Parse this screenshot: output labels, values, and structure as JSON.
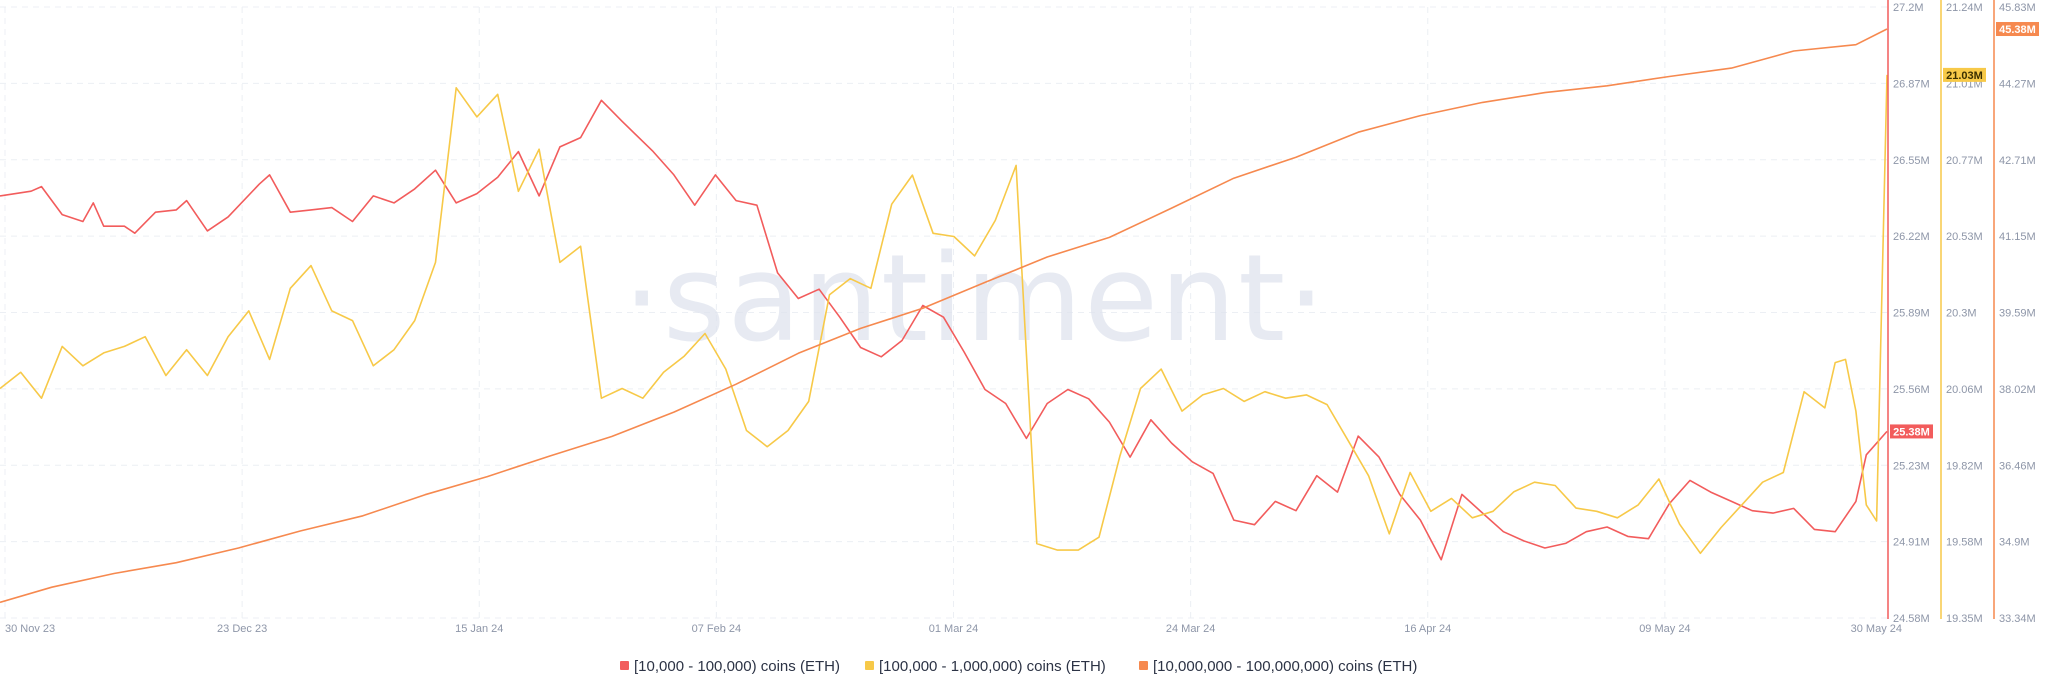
{
  "colors": {
    "series1": "#f25c5c",
    "series2": "#f7c948",
    "series3": "#f6894f",
    "grid": "#eceff4",
    "axis_text": "#8e96a8",
    "watermark": "#dfe4ee"
  },
  "watermark_text": "·santiment·",
  "chart_data": {
    "type": "line",
    "title": "",
    "x_tick_labels": [
      "30 Nov 23",
      "23 Dec 23",
      "15 Jan 24",
      "07 Feb 24",
      "01 Mar 24",
      "24 Mar 24",
      "16 Apr 24",
      "09 May 24",
      "30 May 24"
    ],
    "x_range": [
      "2023-11-30",
      "2024-05-30"
    ],
    "grid": true,
    "legend_position": "bottom-center",
    "y_axes": [
      {
        "id": "y1",
        "series": "[10,000 - 100,000) coins (ETH)",
        "range": [
          24.58,
          27.2
        ],
        "unit": "M",
        "tick_labels": [
          "27.2M",
          "26.87M",
          "26.55M",
          "26.22M",
          "25.89M",
          "25.56M",
          "25.23M",
          "24.91M",
          "24.58M"
        ],
        "current_label": "25.38M"
      },
      {
        "id": "y2",
        "series": "[100,000 - 1,000,000) coins (ETH)",
        "range": [
          19.35,
          21.24
        ],
        "unit": "M",
        "tick_labels": [
          "21.24M",
          "21.01M",
          "20.77M",
          "20.53M",
          "20.3M",
          "20.06M",
          "19.82M",
          "19.58M",
          "19.35M"
        ],
        "current_label": "21.03M"
      },
      {
        "id": "y3",
        "series": "[10,000,000 - 100,000,000) coins (ETH)",
        "range": [
          33.34,
          45.83
        ],
        "unit": "M",
        "tick_labels": [
          "45.83M",
          "44.27M",
          "42.71M",
          "41.15M",
          "39.59M",
          "38.02M",
          "36.46M",
          "34.9M",
          "33.34M"
        ],
        "current_label": "45.38M"
      }
    ],
    "series": [
      {
        "name": "[10,000 - 100,000) coins (ETH)",
        "axis": "y1",
        "color": "#f25c5c",
        "points": [
          [
            "2023-11-30",
            26.39
          ],
          [
            "2023-12-03",
            26.41
          ],
          [
            "2023-12-04",
            26.43
          ],
          [
            "2023-12-06",
            26.31
          ],
          [
            "2023-12-08",
            26.28
          ],
          [
            "2023-12-09",
            26.36
          ],
          [
            "2023-12-10",
            26.26
          ],
          [
            "2023-12-12",
            26.26
          ],
          [
            "2023-12-13",
            26.23
          ],
          [
            "2023-12-15",
            26.32
          ],
          [
            "2023-12-17",
            26.33
          ],
          [
            "2023-12-18",
            26.37
          ],
          [
            "2023-12-20",
            26.24
          ],
          [
            "2023-12-22",
            26.3
          ],
          [
            "2023-12-25",
            26.44
          ],
          [
            "2023-12-26",
            26.48
          ],
          [
            "2023-12-28",
            26.32
          ],
          [
            "2023-12-30",
            26.33
          ],
          [
            "2024-01-01",
            26.34
          ],
          [
            "2024-01-03",
            26.28
          ],
          [
            "2024-01-05",
            26.39
          ],
          [
            "2024-01-07",
            26.36
          ],
          [
            "2024-01-09",
            26.42
          ],
          [
            "2024-01-11",
            26.5
          ],
          [
            "2024-01-13",
            26.36
          ],
          [
            "2024-01-15",
            26.4
          ],
          [
            "2024-01-17",
            26.47
          ],
          [
            "2024-01-19",
            26.58
          ],
          [
            "2024-01-21",
            26.39
          ],
          [
            "2024-01-23",
            26.6
          ],
          [
            "2024-01-25",
            26.64
          ],
          [
            "2024-01-27",
            26.8
          ],
          [
            "2024-01-29",
            26.71
          ],
          [
            "2024-02-01",
            26.58
          ],
          [
            "2024-02-03",
            26.48
          ],
          [
            "2024-02-05",
            26.35
          ],
          [
            "2024-02-07",
            26.48
          ],
          [
            "2024-02-09",
            26.37
          ],
          [
            "2024-02-11",
            26.35
          ],
          [
            "2024-02-13",
            26.06
          ],
          [
            "2024-02-15",
            25.95
          ],
          [
            "2024-02-17",
            25.99
          ],
          [
            "2024-02-19",
            25.87
          ],
          [
            "2024-02-21",
            25.74
          ],
          [
            "2024-02-23",
            25.7
          ],
          [
            "2024-02-25",
            25.77
          ],
          [
            "2024-02-27",
            25.92
          ],
          [
            "2024-02-29",
            25.87
          ],
          [
            "2024-03-02",
            25.72
          ],
          [
            "2024-03-04",
            25.56
          ],
          [
            "2024-03-06",
            25.5
          ],
          [
            "2024-03-08",
            25.35
          ],
          [
            "2024-03-10",
            25.5
          ],
          [
            "2024-03-12",
            25.56
          ],
          [
            "2024-03-14",
            25.52
          ],
          [
            "2024-03-16",
            25.42
          ],
          [
            "2024-03-18",
            25.27
          ],
          [
            "2024-03-20",
            25.43
          ],
          [
            "2024-03-22",
            25.33
          ],
          [
            "2024-03-24",
            25.25
          ],
          [
            "2024-03-26",
            25.2
          ],
          [
            "2024-03-28",
            25.0
          ],
          [
            "2024-03-30",
            24.98
          ],
          [
            "2024-04-01",
            25.08
          ],
          [
            "2024-04-03",
            25.04
          ],
          [
            "2024-04-05",
            25.19
          ],
          [
            "2024-04-07",
            25.12
          ],
          [
            "2024-04-09",
            25.36
          ],
          [
            "2024-04-11",
            25.27
          ],
          [
            "2024-04-13",
            25.11
          ],
          [
            "2024-04-15",
            25.0
          ],
          [
            "2024-04-17",
            24.83
          ],
          [
            "2024-04-19",
            25.11
          ],
          [
            "2024-04-21",
            25.03
          ],
          [
            "2024-04-23",
            24.95
          ],
          [
            "2024-04-25",
            24.91
          ],
          [
            "2024-04-27",
            24.88
          ],
          [
            "2024-04-29",
            24.9
          ],
          [
            "2024-05-01",
            24.95
          ],
          [
            "2024-05-03",
            24.97
          ],
          [
            "2024-05-05",
            24.93
          ],
          [
            "2024-05-07",
            24.92
          ],
          [
            "2024-05-09",
            25.07
          ],
          [
            "2024-05-11",
            25.17
          ],
          [
            "2024-05-13",
            25.12
          ],
          [
            "2024-05-15",
            25.08
          ],
          [
            "2024-05-17",
            25.04
          ],
          [
            "2024-05-19",
            25.03
          ],
          [
            "2024-05-21",
            25.05
          ],
          [
            "2024-05-23",
            24.96
          ],
          [
            "2024-05-25",
            24.95
          ],
          [
            "2024-05-27",
            25.08
          ],
          [
            "2024-05-28",
            25.28
          ],
          [
            "2024-05-30",
            25.38
          ]
        ]
      },
      {
        "name": "[100,000 - 1,000,000) coins (ETH)",
        "axis": "y2",
        "color": "#f7c948",
        "points": [
          [
            "2023-11-30",
            20.06
          ],
          [
            "2023-12-02",
            20.11
          ],
          [
            "2023-12-04",
            20.03
          ],
          [
            "2023-12-06",
            20.19
          ],
          [
            "2023-12-08",
            20.13
          ],
          [
            "2023-12-10",
            20.17
          ],
          [
            "2023-12-12",
            20.19
          ],
          [
            "2023-12-14",
            20.22
          ],
          [
            "2023-12-16",
            20.1
          ],
          [
            "2023-12-18",
            20.18
          ],
          [
            "2023-12-20",
            20.1
          ],
          [
            "2023-12-22",
            20.22
          ],
          [
            "2023-12-24",
            20.3
          ],
          [
            "2023-12-26",
            20.15
          ],
          [
            "2023-12-28",
            20.37
          ],
          [
            "2023-12-30",
            20.44
          ],
          [
            "2024-01-01",
            20.3
          ],
          [
            "2024-01-03",
            20.27
          ],
          [
            "2024-01-05",
            20.13
          ],
          [
            "2024-01-07",
            20.18
          ],
          [
            "2024-01-09",
            20.27
          ],
          [
            "2024-01-11",
            20.45
          ],
          [
            "2024-01-13",
            20.99
          ],
          [
            "2024-01-15",
            20.9
          ],
          [
            "2024-01-17",
            20.97
          ],
          [
            "2024-01-19",
            20.67
          ],
          [
            "2024-01-21",
            20.8
          ],
          [
            "2024-01-23",
            20.45
          ],
          [
            "2024-01-25",
            20.5
          ],
          [
            "2024-01-27",
            20.03
          ],
          [
            "2024-01-29",
            20.06
          ],
          [
            "2024-01-31",
            20.03
          ],
          [
            "2024-02-02",
            20.11
          ],
          [
            "2024-02-04",
            20.16
          ],
          [
            "2024-02-06",
            20.23
          ],
          [
            "2024-02-08",
            20.12
          ],
          [
            "2024-02-10",
            19.93
          ],
          [
            "2024-02-12",
            19.88
          ],
          [
            "2024-02-14",
            19.93
          ],
          [
            "2024-02-16",
            20.02
          ],
          [
            "2024-02-18",
            20.35
          ],
          [
            "2024-02-20",
            20.4
          ],
          [
            "2024-02-22",
            20.37
          ],
          [
            "2024-02-24",
            20.63
          ],
          [
            "2024-02-26",
            20.72
          ],
          [
            "2024-02-28",
            20.54
          ],
          [
            "2024-03-01",
            20.53
          ],
          [
            "2024-03-03",
            20.47
          ],
          [
            "2024-03-05",
            20.58
          ],
          [
            "2024-03-07",
            20.75
          ],
          [
            "2024-03-09",
            19.58
          ],
          [
            "2024-03-11",
            19.56
          ],
          [
            "2024-03-13",
            19.56
          ],
          [
            "2024-03-15",
            19.6
          ],
          [
            "2024-03-17",
            19.85
          ],
          [
            "2024-03-19",
            20.06
          ],
          [
            "2024-03-21",
            20.12
          ],
          [
            "2024-03-23",
            19.99
          ],
          [
            "2024-03-25",
            20.04
          ],
          [
            "2024-03-27",
            20.06
          ],
          [
            "2024-03-29",
            20.02
          ],
          [
            "2024-03-31",
            20.05
          ],
          [
            "2024-04-02",
            20.03
          ],
          [
            "2024-04-04",
            20.04
          ],
          [
            "2024-04-06",
            20.01
          ],
          [
            "2024-04-08",
            19.9
          ],
          [
            "2024-04-10",
            19.79
          ],
          [
            "2024-04-12",
            19.61
          ],
          [
            "2024-04-14",
            19.8
          ],
          [
            "2024-04-16",
            19.68
          ],
          [
            "2024-04-18",
            19.72
          ],
          [
            "2024-04-20",
            19.66
          ],
          [
            "2024-04-22",
            19.68
          ],
          [
            "2024-04-24",
            19.74
          ],
          [
            "2024-04-26",
            19.77
          ],
          [
            "2024-04-28",
            19.76
          ],
          [
            "2024-04-30",
            19.69
          ],
          [
            "2024-05-02",
            19.68
          ],
          [
            "2024-05-04",
            19.66
          ],
          [
            "2024-05-06",
            19.7
          ],
          [
            "2024-05-08",
            19.78
          ],
          [
            "2024-05-10",
            19.64
          ],
          [
            "2024-05-12",
            19.55
          ],
          [
            "2024-05-14",
            19.63
          ],
          [
            "2024-05-16",
            19.7
          ],
          [
            "2024-05-18",
            19.77
          ],
          [
            "2024-05-20",
            19.8
          ],
          [
            "2024-05-22",
            20.05
          ],
          [
            "2024-05-24",
            20.0
          ],
          [
            "2024-05-25",
            20.14
          ],
          [
            "2024-05-26",
            20.15
          ],
          [
            "2024-05-27",
            19.99
          ],
          [
            "2024-05-28",
            19.7
          ],
          [
            "2024-05-29",
            19.65
          ],
          [
            "2024-05-30",
            21.03
          ]
        ]
      },
      {
        "name": "[10,000,000 - 100,000,000) coins (ETH)",
        "axis": "y3",
        "color": "#f6894f",
        "points": [
          [
            "2023-11-30",
            33.66
          ],
          [
            "2023-12-05",
            33.97
          ],
          [
            "2023-12-11",
            34.25
          ],
          [
            "2023-12-17",
            34.47
          ],
          [
            "2023-12-23",
            34.77
          ],
          [
            "2023-12-29",
            35.12
          ],
          [
            "2024-01-04",
            35.43
          ],
          [
            "2024-01-10",
            35.86
          ],
          [
            "2024-01-16",
            36.23
          ],
          [
            "2024-01-22",
            36.65
          ],
          [
            "2024-01-28",
            37.05
          ],
          [
            "2024-02-03",
            37.55
          ],
          [
            "2024-02-09",
            38.12
          ],
          [
            "2024-02-15",
            38.75
          ],
          [
            "2024-02-21",
            39.26
          ],
          [
            "2024-02-27",
            39.67
          ],
          [
            "2024-03-04",
            40.2
          ],
          [
            "2024-03-10",
            40.72
          ],
          [
            "2024-03-16",
            41.12
          ],
          [
            "2024-03-22",
            41.72
          ],
          [
            "2024-03-28",
            42.33
          ],
          [
            "2024-04-03",
            42.76
          ],
          [
            "2024-04-09",
            43.27
          ],
          [
            "2024-04-15",
            43.61
          ],
          [
            "2024-04-21",
            43.88
          ],
          [
            "2024-04-27",
            44.08
          ],
          [
            "2024-05-03",
            44.22
          ],
          [
            "2024-05-09",
            44.41
          ],
          [
            "2024-05-15",
            44.58
          ],
          [
            "2024-05-21",
            44.93
          ],
          [
            "2024-05-27",
            45.06
          ],
          [
            "2024-05-30",
            45.38
          ]
        ]
      }
    ],
    "legend": [
      {
        "label": "[10,000 - 100,000) coins (ETH)",
        "color": "#f25c5c"
      },
      {
        "label": "[100,000  - 1,000,000) coins (ETH)",
        "color": "#f7c948"
      },
      {
        "label": "[10,000,000 - 100,000,000) coins (ETH)",
        "color": "#f6894f"
      }
    ]
  }
}
